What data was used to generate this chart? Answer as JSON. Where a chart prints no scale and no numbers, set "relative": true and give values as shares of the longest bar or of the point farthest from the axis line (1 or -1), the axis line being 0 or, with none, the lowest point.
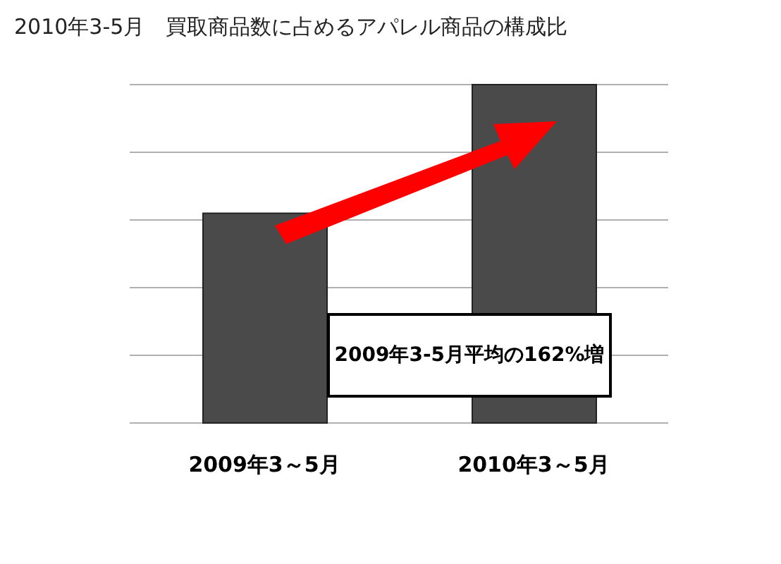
{
  "chart_data": {
    "type": "bar",
    "title": "2010年3-5月　買取商品数に占めるアパレル商品の構成比",
    "categories": [
      "2009年3～5月",
      "2010年3～5月"
    ],
    "values": [
      0.62,
      1
    ],
    "color": "#4a4a4a",
    "relative": true,
    "grid": "y",
    "annotations": [
      "2009年3-5月平均の162%増"
    ]
  }
}
